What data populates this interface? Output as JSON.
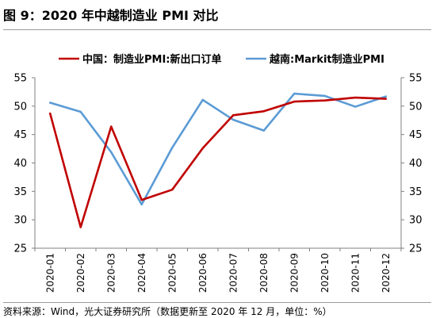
{
  "title": "图 9：2020 年中越制造业 PMI 对比",
  "source": "资料来源：Wind，光大证券研究所（数据更新至 2020 年 12 月，单位：%）",
  "colors": {
    "china": "#C00000",
    "vietnam": "#5B9BD5",
    "axis": "#808080",
    "rule": "#9a9a9a"
  },
  "chart_data": {
    "type": "line",
    "categories": [
      "2020-01",
      "2020-02",
      "2020-03",
      "2020-04",
      "2020-05",
      "2020-06",
      "2020-07",
      "2020-08",
      "2020-09",
      "2020-10",
      "2020-11",
      "2020-12"
    ],
    "series": [
      {
        "name": "中国：制造业PMI:新出口订单",
        "color": "#C00000",
        "values": [
          48.7,
          28.7,
          46.4,
          33.5,
          35.3,
          42.6,
          48.4,
          49.1,
          50.8,
          51.0,
          51.5,
          51.3
        ]
      },
      {
        "name": "越南:Markit制造业PMI",
        "color": "#5B9BD5",
        "values": [
          50.6,
          49.0,
          41.9,
          32.7,
          42.7,
          51.1,
          47.6,
          45.7,
          52.2,
          51.8,
          49.9,
          51.7
        ]
      }
    ],
    "ylim": [
      25,
      55
    ],
    "yticks": [
      25,
      30,
      35,
      40,
      45,
      50,
      55
    ],
    "ytick_labels": [
      "25",
      "30",
      "35",
      "40",
      "45",
      "50",
      "55"
    ],
    "y2lim": [
      25,
      55
    ],
    "legend_position": "top"
  }
}
